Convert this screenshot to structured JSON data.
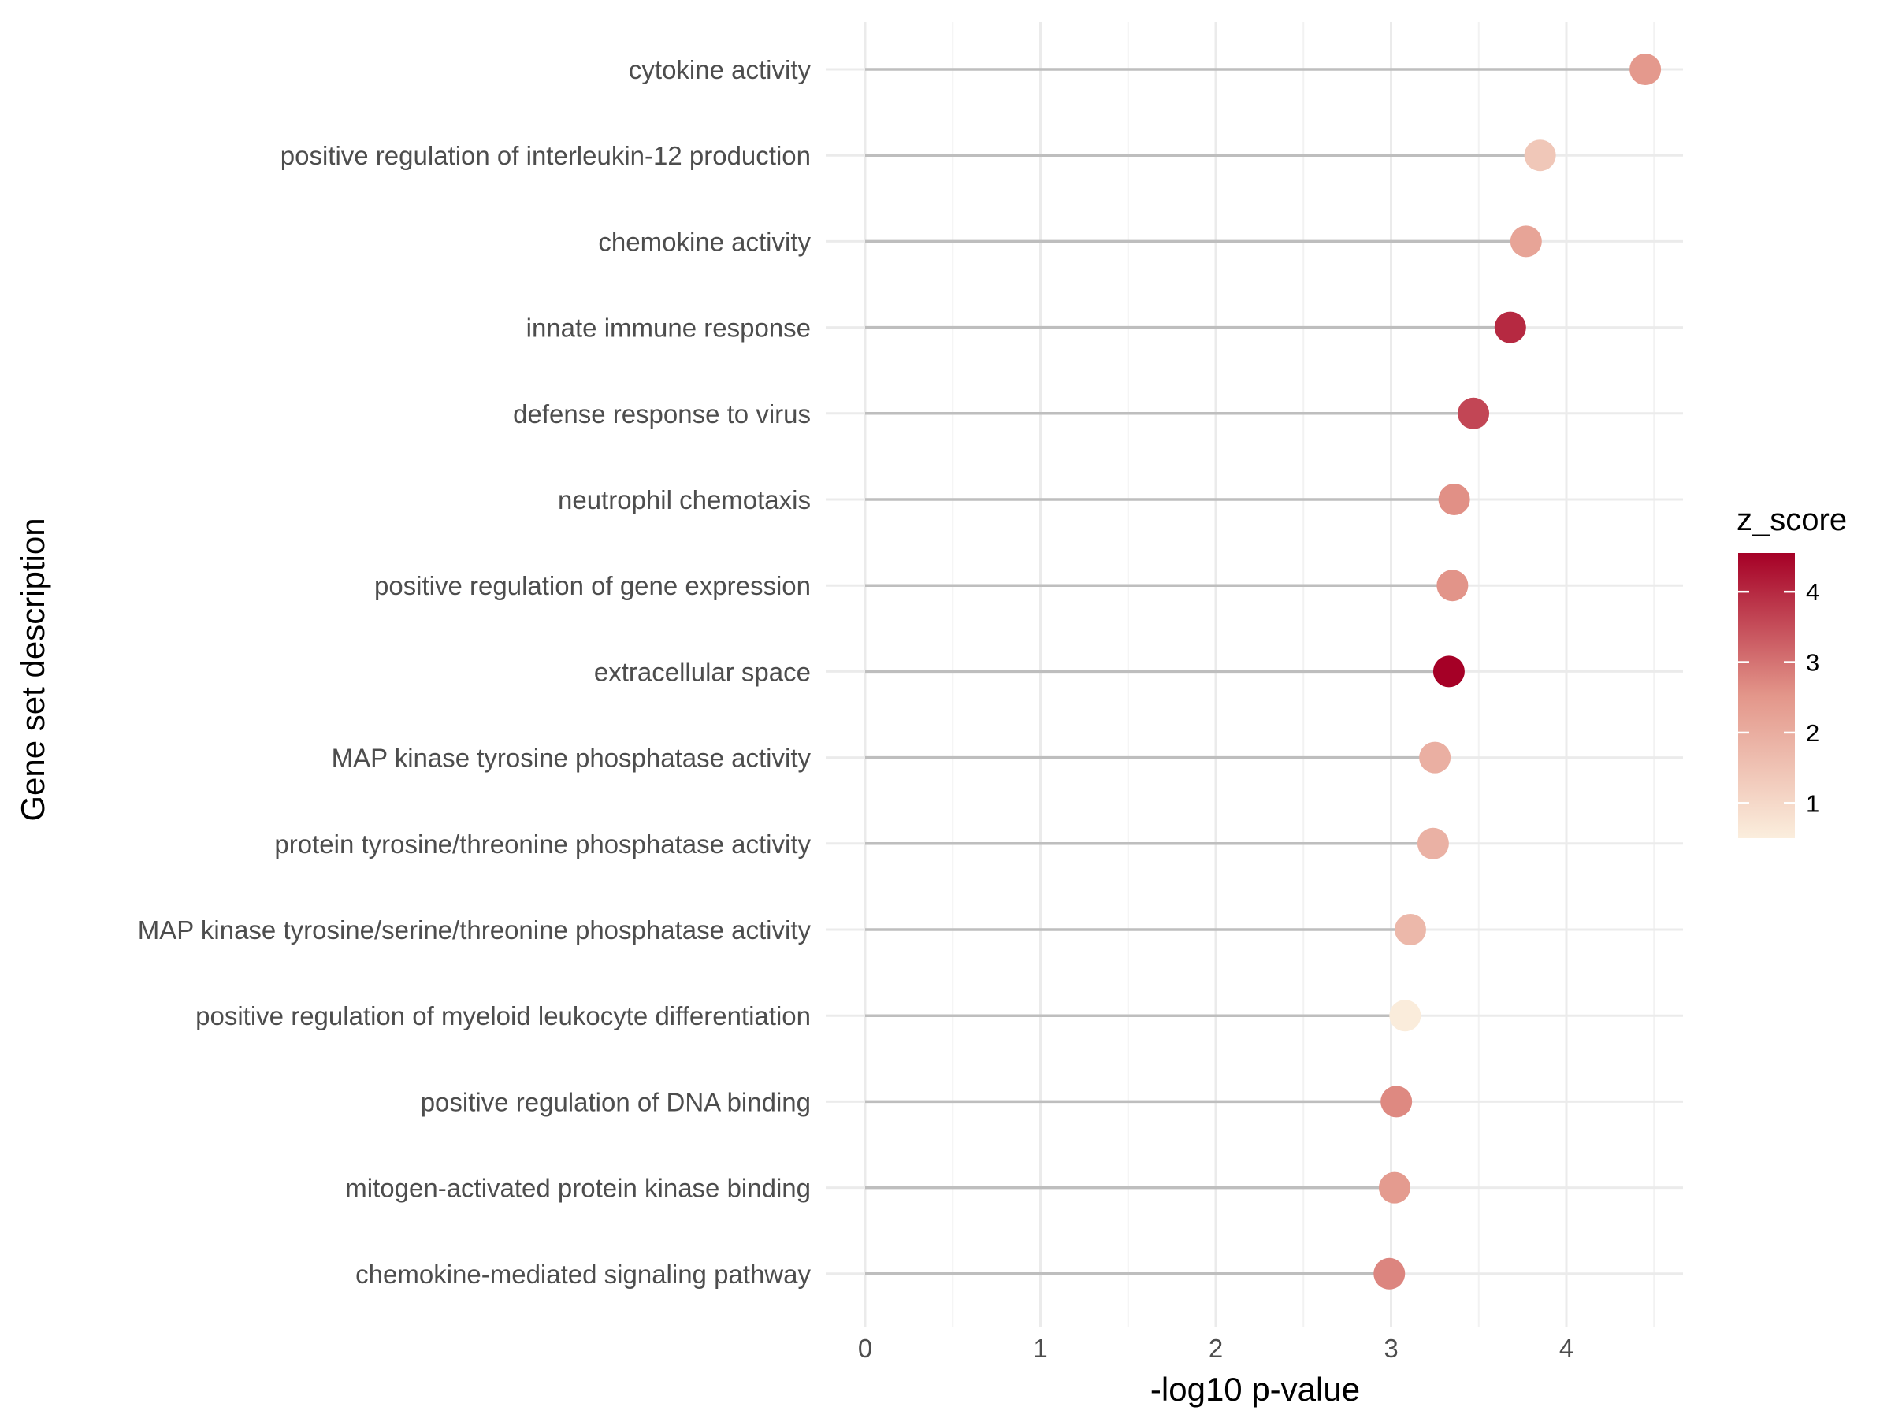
{
  "chart_data": {
    "type": "lollipop",
    "xlabel": "-log10 p-value",
    "ylabel": "Gene set description",
    "xlim": [
      -0.22,
      4.7
    ],
    "x_ticks": [
      0,
      1,
      2,
      3,
      4
    ],
    "grid": true,
    "color_scale": {
      "title": "z_score",
      "min": 0.5,
      "max": 4.55,
      "ticks": [
        1,
        2,
        3,
        4
      ],
      "low_color": "#fbeedd",
      "mid_color": "#e3968a",
      "high_color": "#a50026"
    },
    "legend_position": "right",
    "categories": [
      "cytokine activity",
      "positive regulation of interleukin-12 production",
      "chemokine activity",
      "innate immune response",
      "defense response to virus",
      "neutrophil chemotaxis",
      "positive regulation of gene expression",
      "extracellular space",
      "MAP kinase tyrosine phosphatase activity",
      "protein tyrosine/threonine phosphatase activity",
      "MAP kinase tyrosine/serine/threonine phosphatase activity",
      "positive regulation of myeloid leukocyte differentiation",
      "positive regulation of DNA binding",
      "mitogen-activated protein kinase binding",
      "chemokine-mediated signaling pathway"
    ],
    "values": [
      4.45,
      3.85,
      3.77,
      3.68,
      3.47,
      3.36,
      3.35,
      3.33,
      3.25,
      3.24,
      3.11,
      3.08,
      3.03,
      3.02,
      2.99
    ],
    "z_scores": [
      2.45,
      1.4,
      2.2,
      4.0,
      3.6,
      2.6,
      2.55,
      4.55,
      1.95,
      1.9,
      1.75,
      0.55,
      2.7,
      2.4,
      2.75
    ]
  }
}
